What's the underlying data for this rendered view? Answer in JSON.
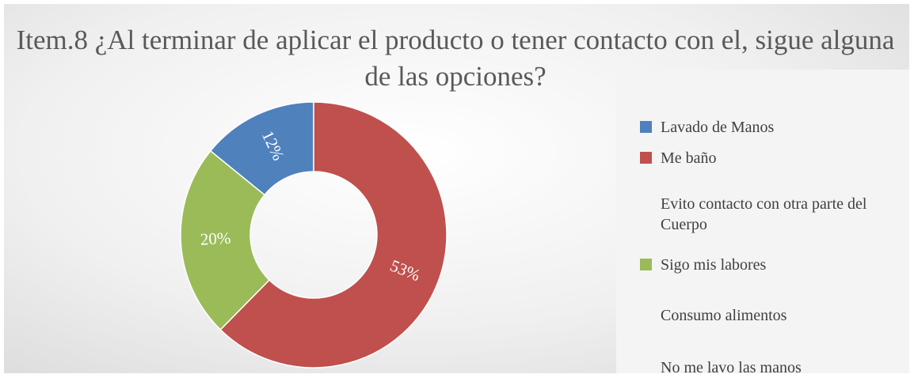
{
  "chart_data": {
    "type": "donut",
    "title": "Item.8 ¿Al terminar de aplicar el producto o tener contacto con el, sigue alguna de las opciones?",
    "categories": [
      "Lavado de Manos",
      "Me baño",
      "Evito contacto con otra parte del Cuerpo",
      "Sigo mis labores",
      "Consumo alimentos",
      "No me lavo las manos"
    ],
    "values": [
      12,
      53,
      0,
      20,
      0,
      0
    ],
    "value_labels": [
      "12%",
      "53%",
      null,
      "20%",
      null,
      null
    ],
    "colors": [
      "#4f81bd",
      "#c0504d",
      null,
      "#9bbb59",
      null,
      null
    ],
    "legend": "right"
  }
}
